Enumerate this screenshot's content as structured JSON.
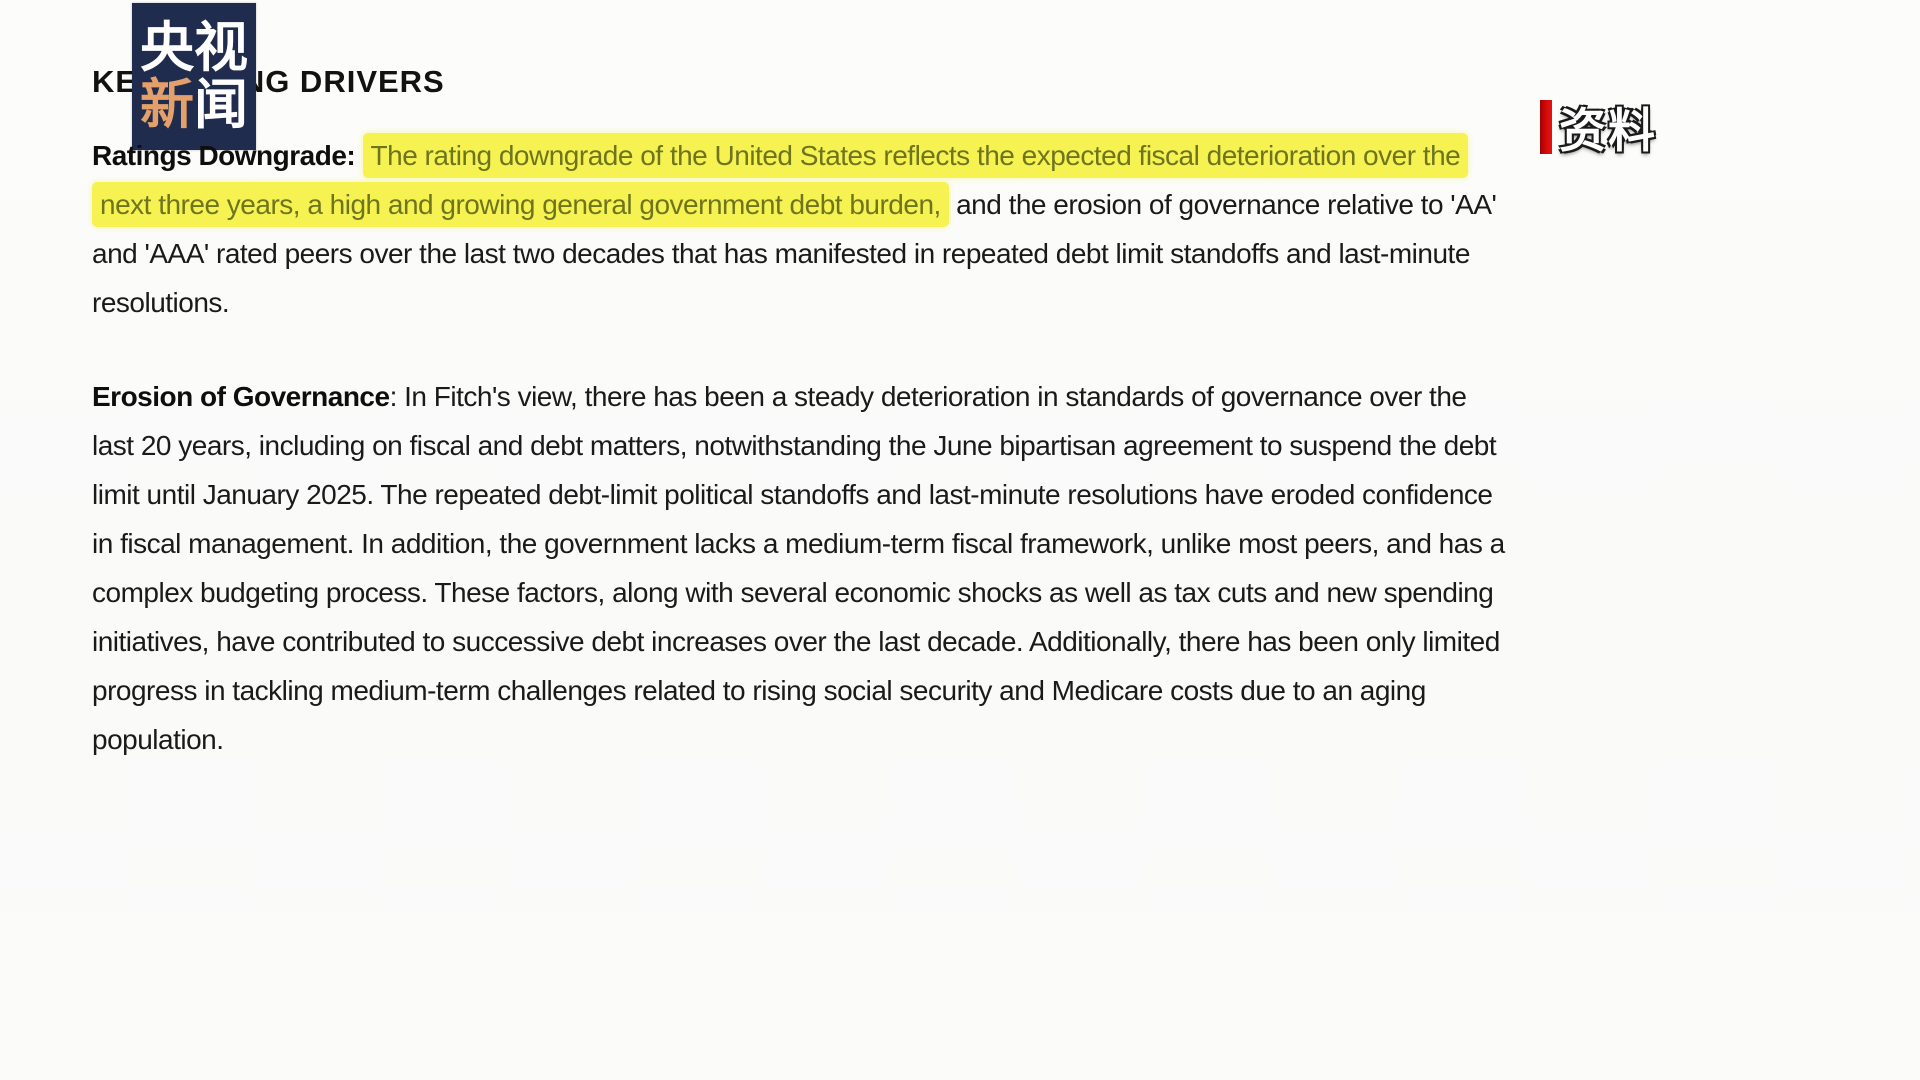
{
  "heading": {
    "text": "KEY RATING DRIVERS"
  },
  "logo": {
    "row1": "央视",
    "row2_first": "新",
    "row2_second": "闻",
    "bg_color": "#202c4e",
    "accent_color": "#e3a06b"
  },
  "stamp": {
    "label": "资料",
    "bar_color": "#d90b0b"
  },
  "paragraph1": {
    "label": "Ratings Downgrade:",
    "highlighted": "The rating downgrade of the United States reflects the expected fiscal deterioration over the next three years, a high and growing general government debt burden,",
    "rest": "and the erosion of governance relative to 'AA' and 'AAA' rated peers over the last two decades that has manifested in repeated debt limit standoffs and last-minute resolutions."
  },
  "paragraph2": {
    "label": "Erosion of Governance",
    "text": ": In Fitch's view, there has been a steady deterioration in standards of governance over the last 20 years, including on fiscal and debt matters, notwithstanding the June bipartisan agreement to suspend the debt limit until January 2025. The repeated debt-limit political standoffs and last-minute resolutions have eroded confidence in fiscal management. In addition, the government lacks a medium-term fiscal framework, unlike most peers, and has a complex budgeting process. These factors, along with several economic shocks as well as tax cuts and new spending initiatives, have contributed to successive debt increases over the last decade. Additionally, there has been only limited progress in tackling medium-term challenges related to rising social security and Medicare costs due to an aging population."
  },
  "colors": {
    "highlight_bg": "#f6f252",
    "highlight_text": "#6e751e",
    "body_text": "#1a1a1a",
    "background": "#fbfbfa"
  }
}
